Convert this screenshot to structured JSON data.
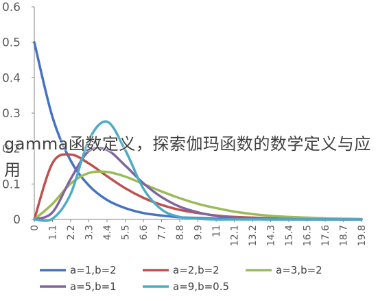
{
  "overlay_text": "gamma函数定义，探索伽玛函数的数学定义与应用",
  "chart_data": {
    "type": "line",
    "ylim": [
      0,
      0.6
    ],
    "yticks": [
      "0",
      "0.1",
      "0.2",
      "0.3",
      "0.4",
      "0.5",
      "0.6"
    ],
    "xticks": [
      "0",
      "1.1",
      "2.2",
      "3.3",
      "4.4",
      "5.5",
      "6.6",
      "7.7",
      "8.8",
      "9.9",
      "11",
      "12.1",
      "13.2",
      "14.3",
      "15.4",
      "16.5",
      "17.6",
      "18.7",
      "19.8"
    ],
    "x_range": [
      0,
      19.8
    ],
    "grid": false,
    "legend_position": "bottom",
    "x": [
      0,
      1.1,
      2.2,
      3.3,
      4.4,
      5.5,
      6.6,
      7.7,
      8.8,
      9.9,
      11,
      12.1,
      13.2,
      14.3,
      15.4,
      16.5,
      17.6,
      18.7,
      19.8
    ],
    "series": [
      {
        "name": "a=1,b=2",
        "color": "#4472C4",
        "values": [
          0.5,
          0.289,
          0.166,
          0.096,
          0.055,
          0.032,
          0.018,
          0.011,
          0.006,
          0.004,
          0.002,
          0.001,
          0.001,
          0.0,
          0.0,
          0.0,
          0.0,
          0.0,
          0.0
        ]
      },
      {
        "name": "a=2,b=2",
        "color": "#C0504D",
        "values": [
          0,
          0.159,
          0.183,
          0.158,
          0.122,
          0.088,
          0.061,
          0.041,
          0.027,
          0.018,
          0.011,
          0.007,
          0.005,
          0.003,
          0.002,
          0.001,
          0.001,
          0.0,
          0.0
        ]
      },
      {
        "name": "a=3,b=2",
        "color": "#9BBB59",
        "values": [
          0,
          0.044,
          0.101,
          0.131,
          0.134,
          0.121,
          0.1,
          0.079,
          0.06,
          0.044,
          0.032,
          0.022,
          0.015,
          0.01,
          0.007,
          0.005,
          0.003,
          0.002,
          0.001
        ]
      },
      {
        "name": "a=5,b=1",
        "color": "#8064A2",
        "values": [
          0,
          0.02,
          0.114,
          0.193,
          0.196,
          0.152,
          0.102,
          0.063,
          0.036,
          0.02,
          0.01,
          0.005,
          0.003,
          0.001,
          0.001,
          0.0,
          0.0,
          0.0,
          0.0
        ]
      },
      {
        "name": "a=9,b=0.5",
        "color": "#4BACC6",
        "values": [
          0,
          0.002,
          0.072,
          0.224,
          0.276,
          0.196,
          0.087,
          0.028,
          0.007,
          0.002,
          0.0,
          0.0,
          0.0,
          0.0,
          0.0,
          0.0,
          0.0,
          0.0,
          0.0
        ]
      }
    ]
  }
}
